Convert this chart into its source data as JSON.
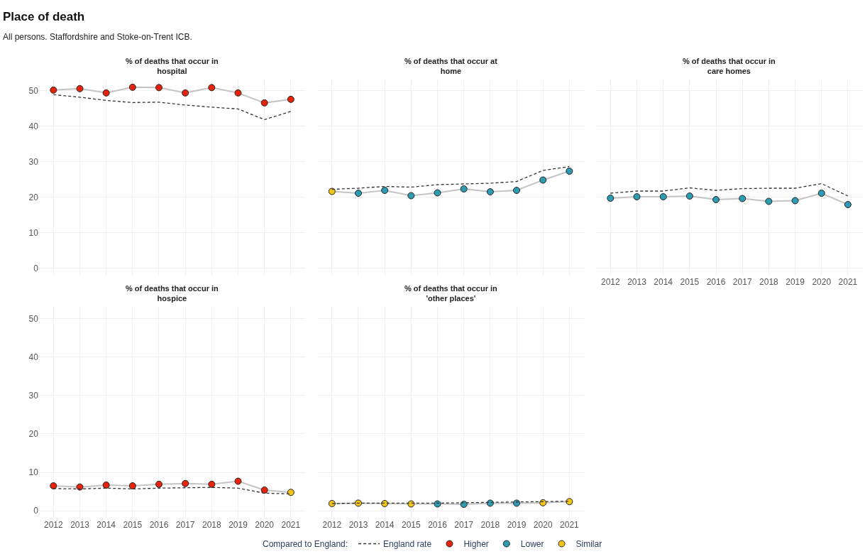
{
  "chart_data": [
    {
      "type": "other",
      "title": "Place of death",
      "subtitle": "All persons. Staffordshire and Stoke-on-Trent ICB.",
      "legend_title": "Compared to England:",
      "categories": [
        "Higher",
        "Lower",
        "Similar"
      ],
      "colors": [
        "#e8230c",
        "#2f9bb1",
        "#f2c417"
      ]
    },
    {
      "type": "line",
      "title": "% of deaths that occur in hospital",
      "categories": [
        "2012",
        "2013",
        "2014",
        "2015",
        "2016",
        "2017",
        "2018",
        "2019",
        "2020",
        "2021"
      ],
      "ylim": [
        -2,
        53
      ],
      "yticks": [
        0,
        10,
        20,
        30,
        40,
        50
      ],
      "grid": true,
      "legend": "bottom",
      "tick_labels": "y",
      "series": [
        {
          "color": "#c4c4c4",
          "marker": "circle",
          "line_style": "solid",
          "values": [
            50.1,
            50.5,
            49.3,
            50.9,
            50.8,
            49.3,
            50.8,
            49.3,
            46.5,
            47.5
          ],
          "colors": [
            "#e8230c",
            "#e8230c",
            "#e8230c",
            "#e8230c",
            "#e8230c",
            "#e8230c",
            "#e8230c",
            "#e8230c",
            "#e8230c",
            "#e8230c"
          ]
        },
        {
          "name": "England rate",
          "color": "#333333",
          "marker": "none",
          "line_style": "dashed",
          "values": [
            48.8,
            48.1,
            47.2,
            46.6,
            46.7,
            45.9,
            45.3,
            44.8,
            41.8,
            44.1
          ]
        }
      ]
    },
    {
      "type": "line",
      "title": "% of deaths that occur at home",
      "categories": [
        "2012",
        "2013",
        "2014",
        "2015",
        "2016",
        "2017",
        "2018",
        "2019",
        "2020",
        "2021"
      ],
      "ylim": [
        -2,
        53
      ],
      "yticks": [
        0,
        10,
        20,
        30,
        40,
        50
      ],
      "grid": true,
      "tick_labels": false,
      "series": [
        {
          "color": "#c4c4c4",
          "marker": "circle",
          "line_style": "solid",
          "values": [
            21.6,
            21.1,
            21.9,
            20.4,
            21.2,
            22.3,
            21.5,
            21.9,
            24.8,
            27.3
          ],
          "colors": [
            "#f2c417",
            "#2f9bb1",
            "#2f9bb1",
            "#2f9bb1",
            "#2f9bb1",
            "#2f9bb1",
            "#2f9bb1",
            "#2f9bb1",
            "#2f9bb1",
            "#2f9bb1"
          ]
        },
        {
          "name": "England rate",
          "color": "#333333",
          "marker": "none",
          "line_style": "dashed",
          "values": [
            22.2,
            22.5,
            23.0,
            22.8,
            23.5,
            23.7,
            23.9,
            24.4,
            27.5,
            28.6
          ]
        }
      ]
    },
    {
      "type": "line",
      "title": "% of deaths that occur in care homes",
      "categories": [
        "2012",
        "2013",
        "2014",
        "2015",
        "2016",
        "2017",
        "2018",
        "2019",
        "2020",
        "2021"
      ],
      "ylim": [
        -2,
        53
      ],
      "yticks": [
        0,
        10,
        20,
        30,
        40,
        50
      ],
      "grid": true,
      "tick_labels": "x",
      "series": [
        {
          "color": "#c4c4c4",
          "marker": "circle",
          "line_style": "solid",
          "values": [
            19.7,
            20.1,
            20.1,
            20.3,
            19.3,
            19.6,
            18.8,
            19.0,
            21.1,
            17.9
          ],
          "colors": [
            "#2f9bb1",
            "#2f9bb1",
            "#2f9bb1",
            "#2f9bb1",
            "#2f9bb1",
            "#2f9bb1",
            "#2f9bb1",
            "#2f9bb1",
            "#2f9bb1",
            "#2f9bb1"
          ]
        },
        {
          "name": "England rate",
          "color": "#333333",
          "marker": "none",
          "line_style": "dashed",
          "values": [
            21.1,
            21.7,
            21.7,
            22.6,
            21.9,
            22.4,
            22.5,
            22.5,
            23.8,
            20.3
          ]
        }
      ]
    },
    {
      "type": "line",
      "title": "% of deaths that occur in hospice",
      "categories": [
        "2012",
        "2013",
        "2014",
        "2015",
        "2016",
        "2017",
        "2018",
        "2019",
        "2020",
        "2021"
      ],
      "ylim": [
        -2,
        53
      ],
      "yticks": [
        0,
        10,
        20,
        30,
        40,
        50
      ],
      "grid": true,
      "series": [
        {
          "color": "#c4c4c4",
          "marker": "circle",
          "line_style": "solid",
          "values": [
            6.5,
            6.2,
            6.7,
            6.5,
            6.9,
            7.1,
            6.9,
            7.7,
            5.4,
            4.8
          ],
          "colors": [
            "#e8230c",
            "#e8230c",
            "#e8230c",
            "#e8230c",
            "#e8230c",
            "#e8230c",
            "#e8230c",
            "#e8230c",
            "#e8230c",
            "#f2c417"
          ]
        },
        {
          "name": "England rate",
          "color": "#333333",
          "marker": "none",
          "line_style": "dashed",
          "values": [
            5.8,
            5.7,
            5.9,
            5.7,
            5.9,
            6.0,
            6.1,
            5.9,
            4.6,
            4.4
          ]
        }
      ]
    },
    {
      "type": "line",
      "title": "% of deaths that occur in 'other places'",
      "categories": [
        "2012",
        "2013",
        "2014",
        "2015",
        "2016",
        "2017",
        "2018",
        "2019",
        "2020",
        "2021"
      ],
      "ylim": [
        -2,
        53
      ],
      "yticks": [
        0,
        10,
        20,
        30,
        40,
        50
      ],
      "grid": true,
      "tick_labels": "x",
      "series": [
        {
          "color": "#c4c4c4",
          "marker": "circle",
          "line_style": "solid",
          "values": [
            1.9,
            2.0,
            1.9,
            1.8,
            1.8,
            1.7,
            2.0,
            2.0,
            2.1,
            2.4
          ],
          "colors": [
            "#f2c417",
            "#f2c417",
            "#f2c417",
            "#f2c417",
            "#2f9bb1",
            "#2f9bb1",
            "#2f9bb1",
            "#2f9bb1",
            "#f2c417",
            "#f2c417"
          ]
        },
        {
          "name": "England rate",
          "color": "#333333",
          "marker": "none",
          "line_style": "dashed",
          "values": [
            1.9,
            2.0,
            2.0,
            2.0,
            2.0,
            2.1,
            2.2,
            2.3,
            2.4,
            2.5
          ]
        }
      ]
    }
  ]
}
